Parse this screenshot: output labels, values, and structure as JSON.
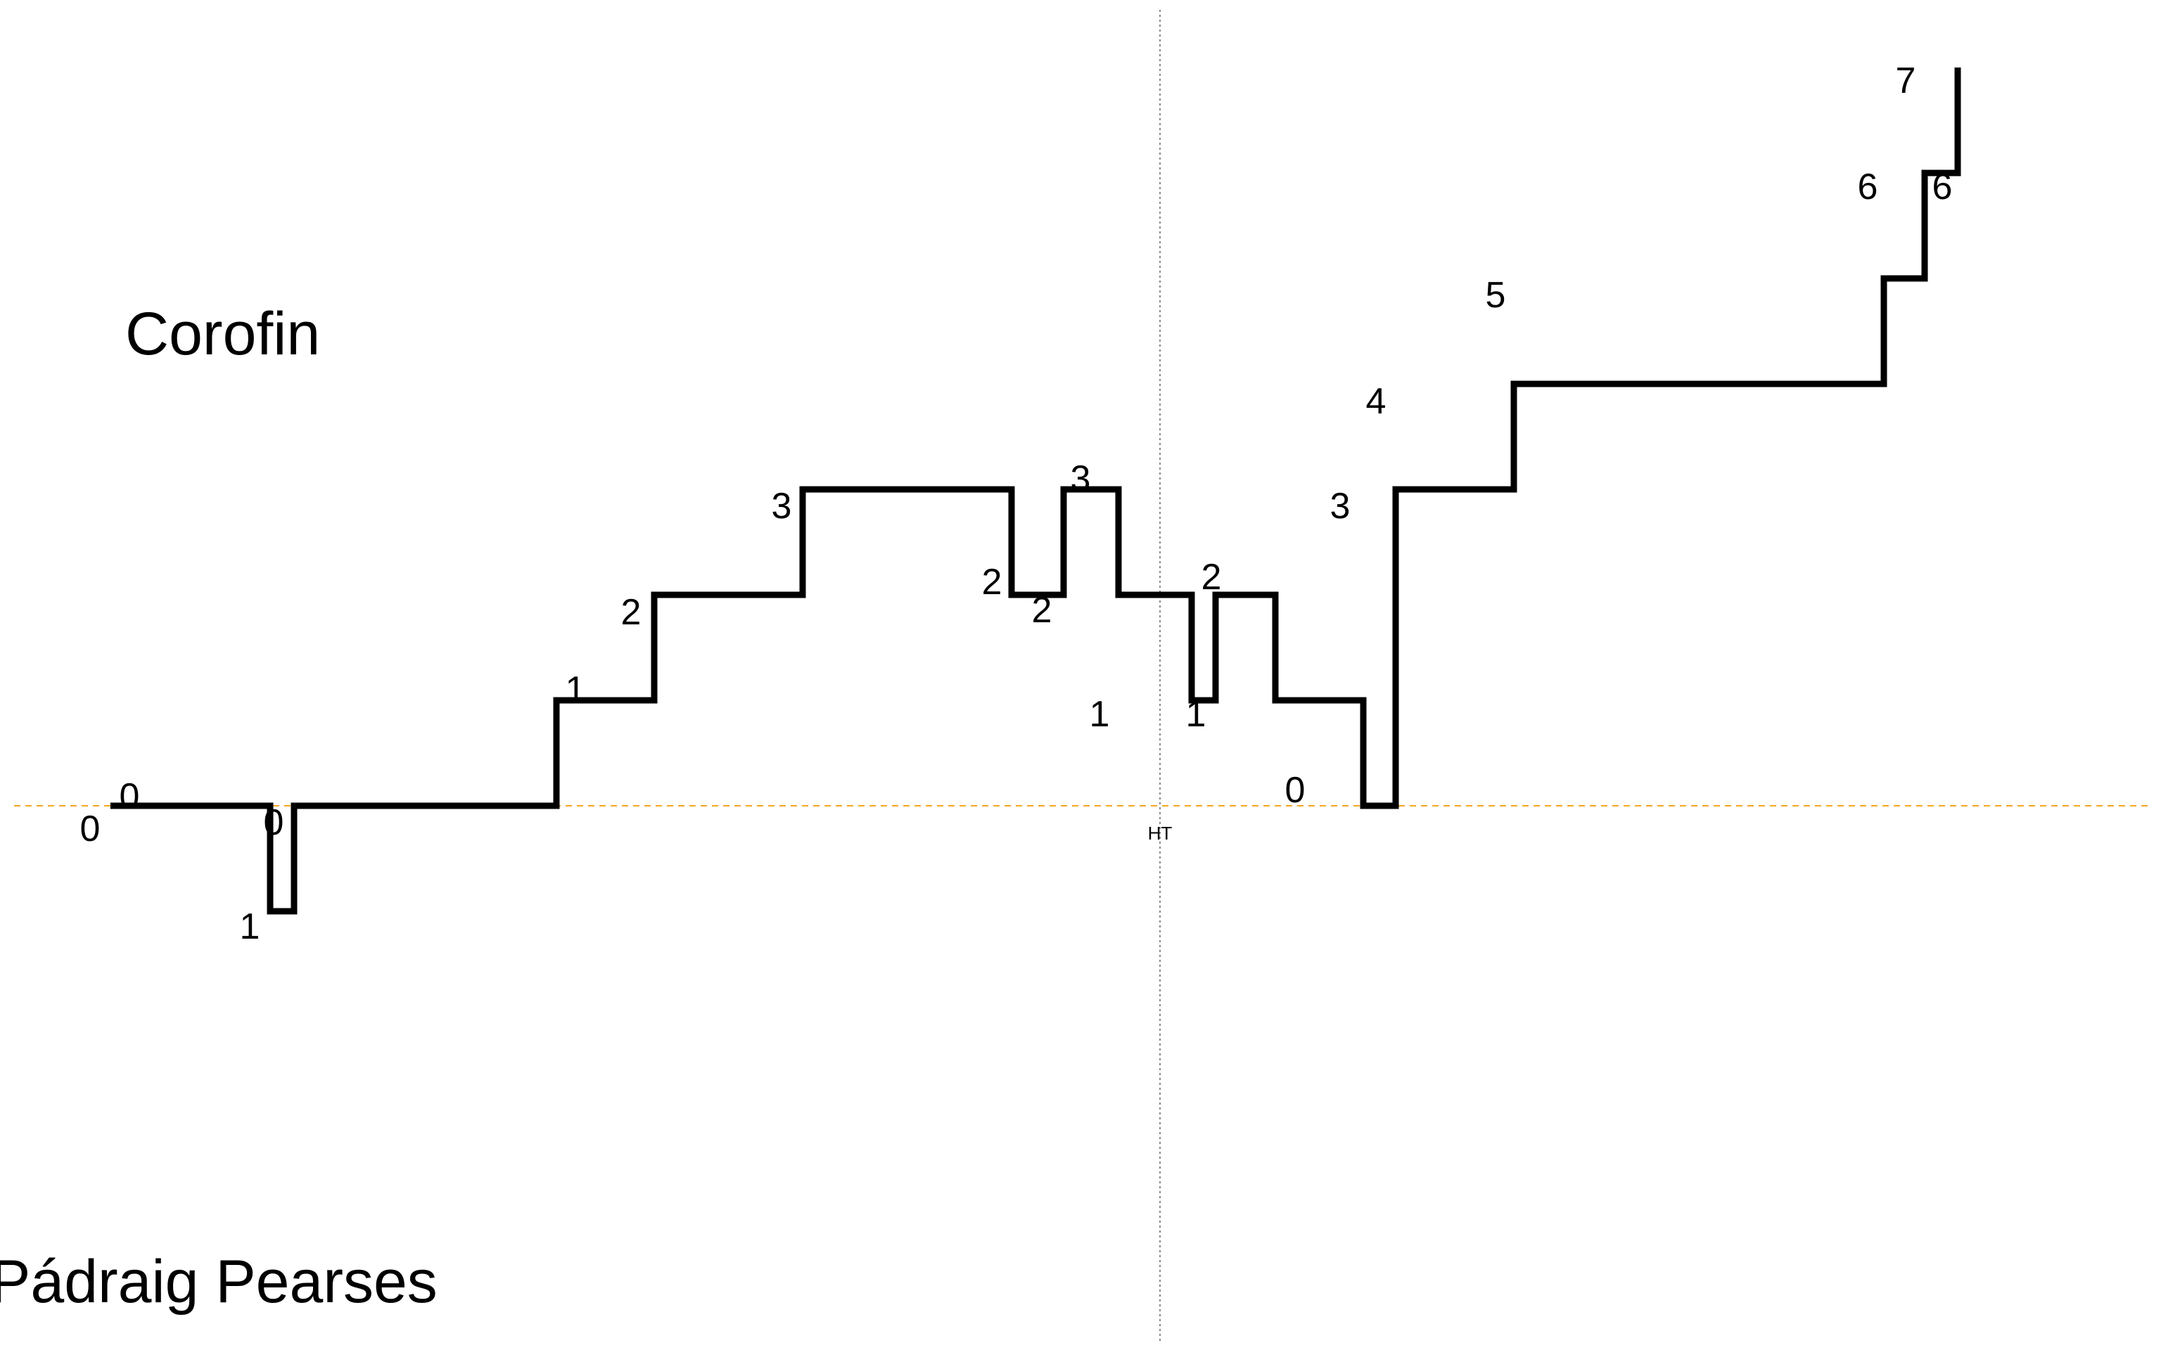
{
  "chart_data": {
    "type": "line",
    "step": true,
    "y_meaning": "score margin",
    "teams": {
      "top": "Corofin",
      "bottom": "Pádraig Pearses"
    },
    "halftime_label": "HT",
    "halftime_index": 12,
    "baseline_value": 0,
    "ylim": [
      -1,
      7
    ],
    "segments": [
      {
        "y": 0,
        "label": "0"
      },
      {
        "y": -1,
        "label": "1"
      },
      {
        "y": 0,
        "label": "0"
      },
      {
        "y": 1,
        "label": "1"
      },
      {
        "y": 2,
        "label": "2"
      },
      {
        "y": 3,
        "label": "3"
      },
      {
        "y": 2,
        "label": "2"
      },
      {
        "y": 3,
        "label": "3"
      },
      {
        "y": 2,
        "label": "2"
      },
      {
        "y": 1,
        "label": "1"
      },
      {
        "y": 2,
        "label": "2"
      },
      {
        "y": 1,
        "label": "1"
      },
      {
        "y": 0,
        "label": "0"
      },
      {
        "y": 3,
        "label": "3"
      },
      {
        "y": 4,
        "label": "4"
      },
      {
        "y": 5,
        "label": "5"
      },
      {
        "y": 6,
        "label": "6"
      },
      {
        "y": 7,
        "label": "7"
      },
      {
        "y": 6,
        "label": "6"
      }
    ],
    "extra_labels": [
      {
        "text": "0"
      }
    ],
    "colors": {
      "line": "#000000",
      "baseline": "#f5a623",
      "halftime_line": "#888888"
    }
  }
}
